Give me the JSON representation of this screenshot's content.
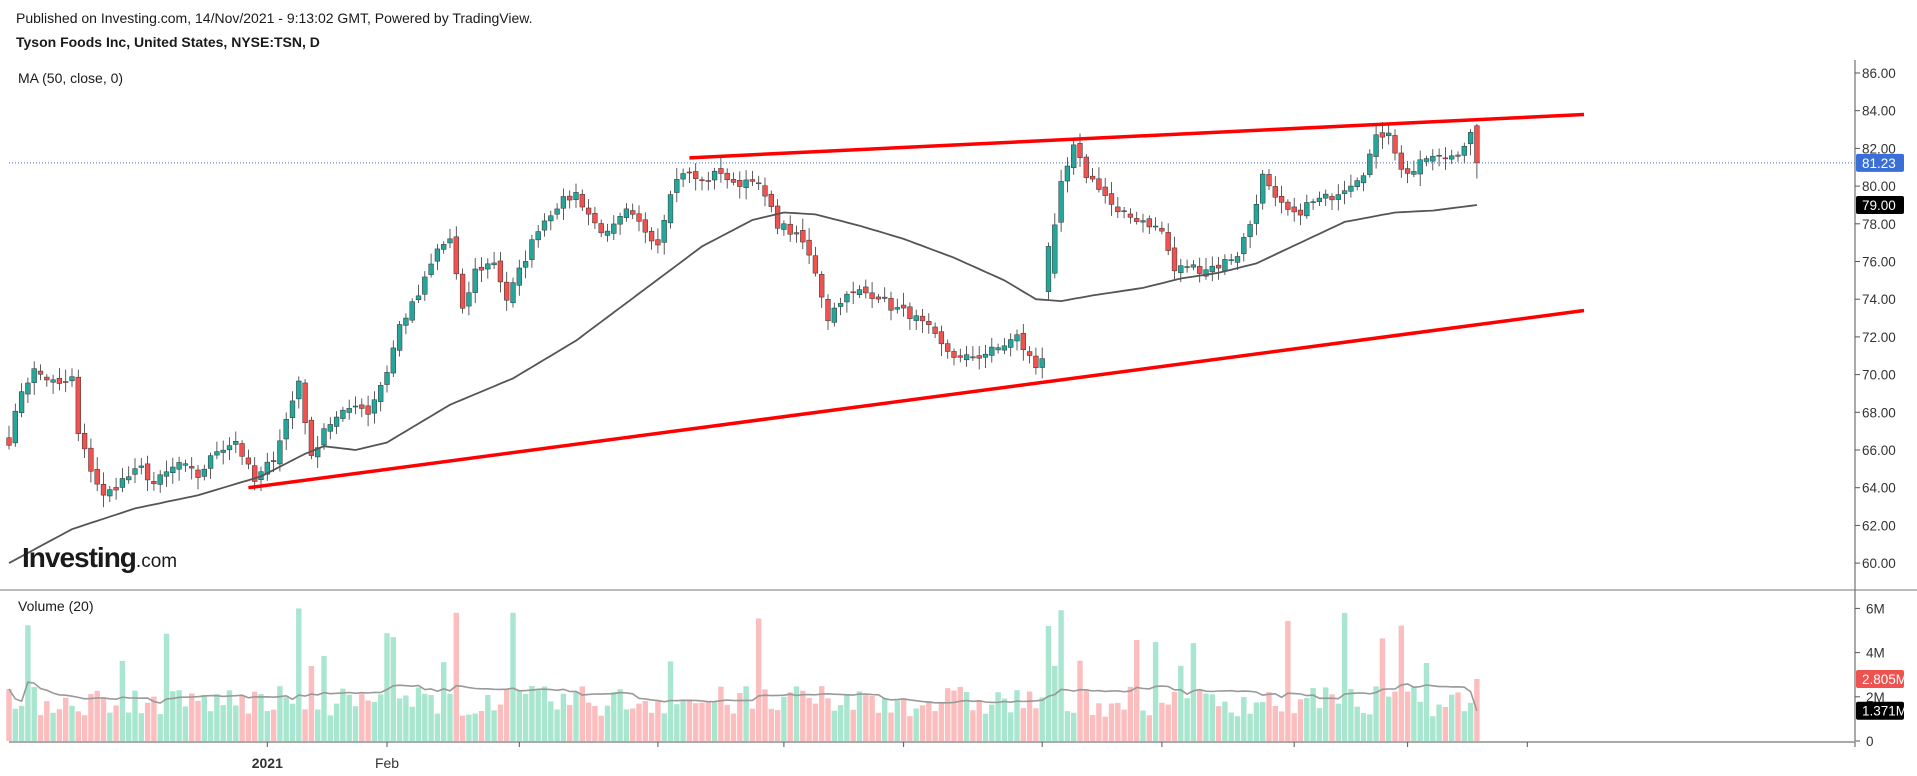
{
  "header": {
    "published": "Published on Investing.com, 14/Nov/2021 - 9:13:02 GMT, Powered by TradingView.",
    "instrument": "Tyson Foods Inc, United States, NYSE:TSN, D"
  },
  "indicators": {
    "ma_label": "MA (50, close, 0)",
    "volume_label": "Volume (20)"
  },
  "logo": {
    "brand": "Investing",
    "suffix": ".com"
  },
  "colors": {
    "up": "#26a69a",
    "down": "#ef5350",
    "vol_up": "#a8e6cf",
    "vol_down": "#fbbdbd",
    "ma": "#555555",
    "trendline": "#ff0000",
    "last_price_badge": "#3b6fd8",
    "vol_badge_down": "#ef5350"
  },
  "chart_data": {
    "type": "candlestick",
    "price_axis": {
      "ticks": [
        86,
        84,
        82,
        80,
        78,
        76,
        74,
        72,
        70,
        68,
        66,
        64,
        62,
        60
      ],
      "tick_labels": [
        "86.00",
        "84.00",
        "82.00",
        "80.00",
        "78.00",
        "76.00",
        "74.00",
        "72.00",
        "70.00",
        "68.00",
        "66.00",
        "64.00",
        "62.00",
        "60.00"
      ],
      "ylim": [
        59,
        87
      ]
    },
    "volume_axis": {
      "ticks": [
        6000000,
        4000000,
        2000000,
        0
      ],
      "tick_labels": [
        "6M",
        "4M",
        "2M",
        "0"
      ],
      "ylim": [
        0,
        6200000
      ]
    },
    "x_axis": {
      "labels": [
        "2021",
        "Feb"
      ],
      "label_sessions": [
        41,
        60
      ],
      "tick_sessions": [
        41,
        60,
        81,
        103,
        123,
        142,
        164,
        183,
        204,
        222,
        241
      ]
    },
    "last_price": {
      "value": 81.23,
      "label": "81.23"
    },
    "ma_last": {
      "value": 79.0,
      "label": "79.00"
    },
    "volume_last": {
      "value": 2805000,
      "label": "2.805M"
    },
    "volume_ma_last": {
      "value": 1371000,
      "label": "1.371M"
    },
    "trendlines": [
      {
        "name": "upper",
        "from": [
          108,
          81.5
        ],
        "to": [
          250,
          83.8
        ]
      },
      {
        "name": "lower",
        "from": [
          38,
          64.0
        ],
        "to": [
          250,
          73.4
        ]
      }
    ],
    "anchors": [
      [
        0,
        66.5
      ],
      [
        2,
        69.2
      ],
      [
        4,
        70.2
      ],
      [
        8,
        69.4
      ],
      [
        10,
        69.8
      ],
      [
        11,
        66.8
      ],
      [
        13,
        65.0
      ],
      [
        15,
        63.5
      ],
      [
        18,
        64.4
      ],
      [
        21,
        65.0
      ],
      [
        23,
        64.2
      ],
      [
        27,
        65.3
      ],
      [
        30,
        64.6
      ],
      [
        33,
        66.0
      ],
      [
        36,
        66.5
      ],
      [
        39,
        64.3
      ],
      [
        42,
        65.6
      ],
      [
        45,
        68.6
      ],
      [
        46,
        69.7
      ],
      [
        48,
        65.5
      ],
      [
        50,
        67.2
      ],
      [
        53,
        67.9
      ],
      [
        55,
        68.5
      ],
      [
        57,
        68.0
      ],
      [
        60,
        70.2
      ],
      [
        62,
        72.6
      ],
      [
        65,
        74.2
      ],
      [
        68,
        76.6
      ],
      [
        70,
        77.2
      ],
      [
        72,
        73.3
      ],
      [
        74,
        75.5
      ],
      [
        77,
        76.0
      ],
      [
        79,
        74.0
      ],
      [
        82,
        76.2
      ],
      [
        84,
        77.8
      ],
      [
        87,
        79.0
      ],
      [
        90,
        79.6
      ],
      [
        93,
        78.0
      ],
      [
        95,
        77.4
      ],
      [
        98,
        78.6
      ],
      [
        100,
        78.0
      ],
      [
        103,
        77.0
      ],
      [
        105,
        79.8
      ],
      [
        107,
        80.8
      ],
      [
        110,
        80.2
      ],
      [
        113,
        80.8
      ],
      [
        115,
        80.0
      ],
      [
        118,
        80.5
      ],
      [
        120,
        79.4
      ],
      [
        122,
        78.0
      ],
      [
        124,
        77.6
      ],
      [
        126,
        77.0
      ],
      [
        128,
        75.5
      ],
      [
        130,
        73.0
      ],
      [
        132,
        74.0
      ],
      [
        135,
        74.4
      ],
      [
        138,
        74.2
      ],
      [
        140,
        73.6
      ],
      [
        143,
        73.2
      ],
      [
        146,
        72.4
      ],
      [
        148,
        71.5
      ],
      [
        151,
        70.8
      ],
      [
        154,
        71.0
      ],
      [
        157,
        71.4
      ],
      [
        160,
        72.0
      ],
      [
        161,
        71.4
      ],
      [
        163,
        70.4
      ],
      [
        164,
        71.0
      ],
      [
        165,
        75.4
      ],
      [
        167,
        80.0
      ],
      [
        169,
        82.0
      ],
      [
        171,
        80.6
      ],
      [
        173,
        80.0
      ],
      [
        176,
        78.5
      ],
      [
        180,
        78.2
      ],
      [
        183,
        77.6
      ],
      [
        185,
        75.5
      ],
      [
        187,
        75.8
      ],
      [
        189,
        75.6
      ],
      [
        192,
        75.8
      ],
      [
        195,
        76.4
      ],
      [
        197,
        78.0
      ],
      [
        199,
        80.5
      ],
      [
        201,
        79.2
      ],
      [
        204,
        78.4
      ],
      [
        206,
        79.0
      ],
      [
        210,
        79.5
      ],
      [
        213,
        80.2
      ],
      [
        215,
        80.8
      ],
      [
        217,
        82.5
      ],
      [
        219,
        83.0
      ],
      [
        221,
        80.8
      ],
      [
        223,
        80.8
      ],
      [
        225,
        81.5
      ],
      [
        228,
        81.5
      ],
      [
        230,
        81.8
      ],
      [
        232,
        82.7
      ],
      [
        233,
        81.23
      ]
    ],
    "ma_anchors": [
      [
        0,
        60.0
      ],
      [
        10,
        61.8
      ],
      [
        20,
        62.9
      ],
      [
        30,
        63.6
      ],
      [
        40,
        64.6
      ],
      [
        47,
        65.8
      ],
      [
        50,
        66.2
      ],
      [
        55,
        66.0
      ],
      [
        60,
        66.4
      ],
      [
        70,
        68.4
      ],
      [
        80,
        69.8
      ],
      [
        90,
        71.8
      ],
      [
        100,
        74.3
      ],
      [
        110,
        76.8
      ],
      [
        118,
        78.2
      ],
      [
        123,
        78.6
      ],
      [
        128,
        78.5
      ],
      [
        135,
        77.9
      ],
      [
        142,
        77.2
      ],
      [
        150,
        76.2
      ],
      [
        158,
        75.0
      ],
      [
        163,
        74.0
      ],
      [
        167,
        73.9
      ],
      [
        172,
        74.2
      ],
      [
        180,
        74.6
      ],
      [
        186,
        75.1
      ],
      [
        192,
        75.4
      ],
      [
        198,
        75.9
      ],
      [
        205,
        77.0
      ],
      [
        212,
        78.1
      ],
      [
        220,
        78.6
      ],
      [
        226,
        78.7
      ],
      [
        233,
        79.0
      ]
    ]
  }
}
